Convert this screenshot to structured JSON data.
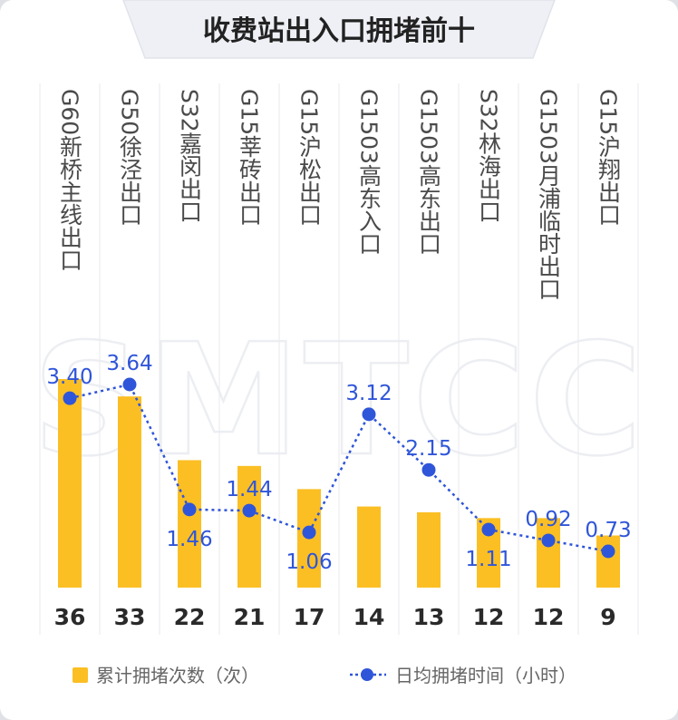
{
  "title": "收费站出入口拥堵前十",
  "watermark": "SMTCC",
  "colors": {
    "bar": "#fbbf24",
    "line": "#2f55d9",
    "grid": "#e8eaee",
    "title_band": "#eef0f5"
  },
  "legend": {
    "bar_label": "累计拥堵次数（次）",
    "line_label": "日均拥堵时间（小时）"
  },
  "chart_data": {
    "type": "bar",
    "categories": [
      "G60新桥主线出口",
      "G50徐泾出口",
      "S32嘉闵出口",
      "G15莘砖出口",
      "G15沪松出口",
      "G1503高东入口",
      "G1503高东出口",
      "S32林海出口",
      "G1503月浦临时出口",
      "G15沪翔出口"
    ],
    "series": [
      {
        "name": "累计拥堵次数（次）",
        "type": "bar",
        "values": [
          36,
          33,
          22,
          21,
          17,
          14,
          13,
          12,
          12,
          9
        ]
      },
      {
        "name": "日均拥堵时间（小时）",
        "type": "line",
        "values": [
          "3.40",
          "3.64",
          "1.46",
          "1.44",
          "1.06",
          "3.12",
          "2.15",
          "1.11",
          "0.92",
          "0.73"
        ]
      }
    ],
    "ylim_bar": [
      0,
      36
    ],
    "ylim_line": [
      0,
      4
    ],
    "grid": true,
    "legend_position": "bottom"
  }
}
